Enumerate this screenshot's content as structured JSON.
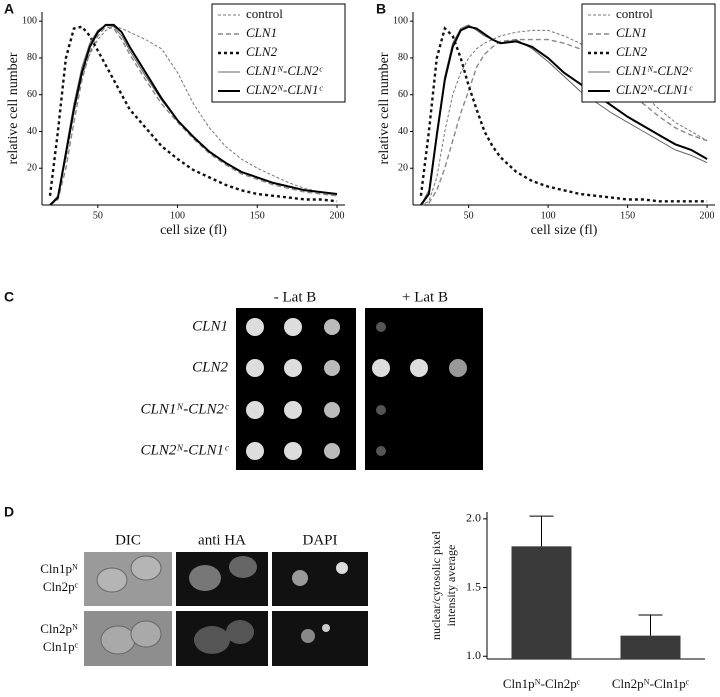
{
  "chart_data": [
    {
      "type": "line",
      "panel": "A",
      "xlabel": "cell size (fl)",
      "ylabel": "relative cell number",
      "x": [
        20,
        25,
        30,
        35,
        40,
        45,
        50,
        55,
        60,
        65,
        70,
        80,
        90,
        100,
        110,
        120,
        130,
        140,
        150,
        160,
        170,
        180,
        190,
        200
      ],
      "xlim": [
        15,
        205
      ],
      "ylim": [
        0,
        105
      ],
      "xticks": [
        50,
        100,
        150,
        200
      ],
      "yticks": [
        20,
        40,
        60,
        80,
        100
      ],
      "legend": "upper right",
      "series": [
        {
          "name": "control",
          "color": "#777",
          "dash": "3,2",
          "width": 1,
          "values": [
            0,
            5,
            25,
            50,
            70,
            82,
            90,
            95,
            97,
            96,
            94,
            90,
            85,
            72,
            55,
            42,
            32,
            25,
            20,
            16,
            12,
            9,
            7,
            5
          ]
        },
        {
          "name": "CLN1",
          "color": "#888",
          "dash": "5,3",
          "width": 1.4,
          "values": [
            0,
            3,
            20,
            45,
            68,
            83,
            92,
            97,
            96,
            90,
            82,
            68,
            55,
            45,
            36,
            28,
            22,
            17,
            14,
            11,
            9,
            7,
            6,
            5
          ]
        },
        {
          "name": "CLN2",
          "color": "#111",
          "dash": "3,3",
          "width": 2.4,
          "values": [
            5,
            40,
            80,
            96,
            97,
            92,
            84,
            76,
            68,
            60,
            52,
            42,
            32,
            25,
            19,
            15,
            11,
            8,
            6,
            5,
            4,
            3,
            3,
            2
          ]
        },
        {
          "name": "CLN1ᴺ-CLN2ᶜ",
          "color": "#666",
          "dash": "none",
          "width": 1,
          "values": [
            0,
            5,
            30,
            55,
            75,
            88,
            95,
            98,
            97,
            92,
            84,
            70,
            57,
            46,
            37,
            29,
            23,
            18,
            15,
            12,
            10,
            8,
            7,
            6
          ]
        },
        {
          "name": "CLN2ᴺ-CLN1ᶜ",
          "color": "#000",
          "dash": "none",
          "width": 2,
          "values": [
            0,
            4,
            28,
            52,
            72,
            86,
            94,
            98,
            98,
            94,
            86,
            72,
            58,
            46,
            37,
            29,
            23,
            18,
            15,
            12,
            10,
            8,
            7,
            6
          ]
        }
      ]
    },
    {
      "type": "line",
      "panel": "B",
      "xlabel": "cell size (fl)",
      "ylabel": "relative cell number",
      "x": [
        20,
        25,
        30,
        35,
        40,
        45,
        50,
        55,
        60,
        65,
        70,
        80,
        90,
        100,
        110,
        120,
        130,
        140,
        150,
        160,
        170,
        180,
        190,
        200
      ],
      "xlim": [
        15,
        205
      ],
      "ylim": [
        0,
        105
      ],
      "xticks": [
        50,
        100,
        150,
        200
      ],
      "yticks": [
        20,
        40,
        60,
        80,
        100
      ],
      "legend": "upper right",
      "series": [
        {
          "name": "control",
          "color": "#777",
          "dash": "3,2",
          "width": 1,
          "values": [
            0,
            2,
            15,
            40,
            60,
            72,
            80,
            85,
            88,
            90,
            92,
            94,
            95,
            95,
            92,
            88,
            82,
            75,
            68,
            60,
            52,
            45,
            40,
            35
          ]
        },
        {
          "name": "CLN1",
          "color": "#888",
          "dash": "5,3",
          "width": 1.4,
          "values": [
            0,
            1,
            8,
            20,
            35,
            50,
            62,
            75,
            82,
            86,
            89,
            90,
            90,
            90,
            88,
            85,
            80,
            72,
            62,
            55,
            48,
            42,
            38,
            35
          ]
        },
        {
          "name": "CLN2",
          "color": "#111",
          "dash": "3,3",
          "width": 2.4,
          "values": [
            5,
            40,
            80,
            96,
            92,
            80,
            65,
            52,
            40,
            32,
            26,
            18,
            13,
            10,
            8,
            6,
            5,
            4,
            3,
            3,
            2,
            2,
            2,
            2
          ]
        },
        {
          "name": "CLN1ᴺ-CLN2ᶜ",
          "color": "#666",
          "dash": "none",
          "width": 1,
          "values": [
            0,
            8,
            40,
            70,
            88,
            96,
            98,
            95,
            92,
            90,
            88,
            90,
            85,
            78,
            70,
            62,
            56,
            50,
            45,
            40,
            35,
            30,
            27,
            23
          ]
        },
        {
          "name": "CLN2ᴺ-CLN1ᶜ",
          "color": "#000",
          "dash": "none",
          "width": 2,
          "values": [
            0,
            6,
            38,
            68,
            86,
            95,
            97,
            96,
            93,
            90,
            88,
            89,
            86,
            80,
            72,
            66,
            60,
            54,
            48,
            43,
            38,
            33,
            30,
            25
          ]
        }
      ]
    },
    {
      "type": "bar",
      "panel": "D",
      "ylabel": [
        "nuclear/cytosolic pixel",
        "intensity average"
      ],
      "categories": [
        "Cln1pᴺ-Cln2pᶜ",
        "Cln2pᴺ-Cln1pᶜ"
      ],
      "values": [
        1.8,
        1.15
      ],
      "errors": [
        0.22,
        0.15
      ],
      "color": "#3a3a3a",
      "ylim": [
        0.98,
        2.05
      ],
      "yticks": [
        {
          "value": 1.0,
          "label": "1.0"
        },
        {
          "value": 1.5,
          "label": "1.5"
        },
        {
          "value": 2.0,
          "label": "2.0"
        }
      ]
    }
  ],
  "panel_c": {
    "label": "C",
    "columns": [
      "- Lat B",
      "+ Lat B"
    ],
    "rows": [
      "CLN1",
      "CLN2",
      "CLN1ᴺ-CLN2ᶜ",
      "CLN2ᴺ-CLN1ᶜ"
    ]
  },
  "panel_d": {
    "label": "D",
    "columns": [
      "DIC",
      "anti HA",
      "DAPI"
    ],
    "rows": [
      [
        "Cln1pᴺ",
        "Cln2pᶜ"
      ],
      [
        "Cln2pᴺ",
        "Cln1pᶜ"
      ]
    ]
  }
}
